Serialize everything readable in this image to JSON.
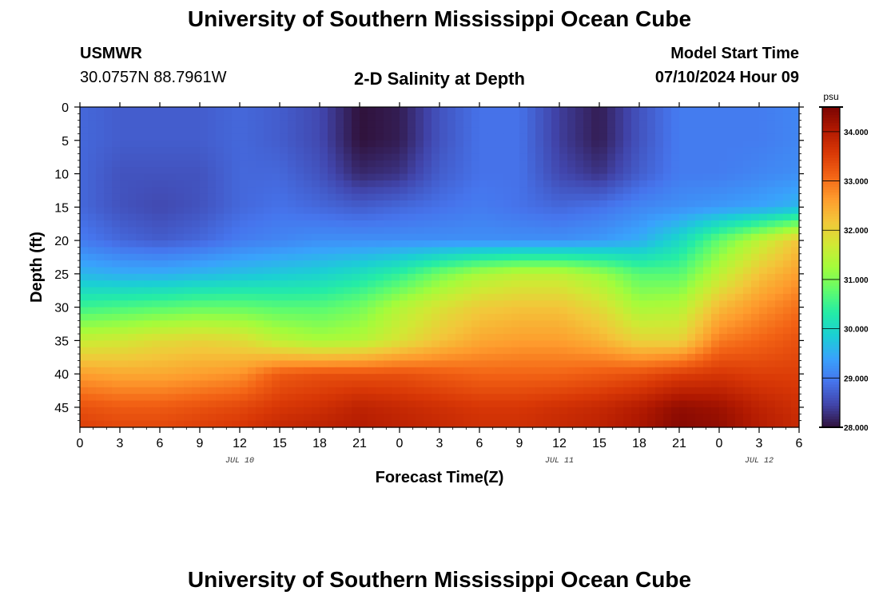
{
  "header": {
    "title": "University of Southern Mississippi Ocean Cube",
    "station": "USMWR",
    "coords": "30.0757N  88.7961W",
    "subtitle": "2-D Salinity at Depth",
    "model_label": "Model Start Time",
    "model_time": "07/10/2024 Hour 09"
  },
  "footer": {
    "title": "University of Southern Mississippi Ocean Cube"
  },
  "chart_data": {
    "type": "heatmap",
    "title": "2-D Salinity at Depth",
    "xlabel": "Forecast Time(Z)",
    "ylabel": "Depth (ft)",
    "x_tick_labels": [
      "0",
      "3",
      "6",
      "9",
      "12",
      "15",
      "18",
      "21",
      "0",
      "3",
      "6",
      "9",
      "12",
      "15",
      "18",
      "21",
      "0",
      "3",
      "6"
    ],
    "x_range_hours": [
      0,
      54
    ],
    "date_labels": [
      {
        "label": "JUL 10",
        "hour": 12
      },
      {
        "label": "JUL 11",
        "hour": 36
      },
      {
        "label": "JUL 12",
        "hour": 51
      }
    ],
    "y_ticks": [
      0,
      5,
      10,
      15,
      20,
      25,
      30,
      35,
      40,
      45
    ],
    "ylim": [
      0,
      48
    ],
    "y_inverted": true,
    "colorbar": {
      "unit": "psu",
      "range": [
        28.0,
        34.5
      ],
      "tick_values": [
        28.0,
        29.0,
        30.0,
        31.0,
        32.0,
        33.0,
        34.0
      ],
      "tick_labels": [
        "28.000",
        "29.000",
        "30.000",
        "31.000",
        "32.000",
        "33.000",
        "34.000"
      ],
      "colormap": [
        "#30123b",
        "#4145ab",
        "#4675ed",
        "#39a2fc",
        "#1bcfd4",
        "#24eca6",
        "#61fc6c",
        "#a4fc3b",
        "#d1e834",
        "#f3c63a",
        "#fe9b2d",
        "#f36315",
        "#d93806",
        "#b11901",
        "#7a0402"
      ]
    },
    "x_samples_hours": [
      0,
      3,
      6,
      9,
      12,
      15,
      18,
      21,
      24,
      27,
      30,
      33,
      36,
      39,
      42,
      45,
      48,
      51,
      54
    ],
    "depth_samples_ft": [
      0,
      5,
      10,
      15,
      20,
      25,
      30,
      35,
      40,
      45,
      48
    ],
    "salinity_grid": [
      [
        28.8,
        28.7,
        28.7,
        28.7,
        28.8,
        28.7,
        28.5,
        28.0,
        28.1,
        28.6,
        28.9,
        28.9,
        28.4,
        28.1,
        28.6,
        29.0,
        29.0,
        29.0,
        29.1
      ],
      [
        28.8,
        28.7,
        28.7,
        28.7,
        28.8,
        28.7,
        28.5,
        28.0,
        28.1,
        28.6,
        28.9,
        28.9,
        28.4,
        28.1,
        28.6,
        29.0,
        29.0,
        29.0,
        29.1
      ],
      [
        28.8,
        28.6,
        28.6,
        28.6,
        28.8,
        28.8,
        28.6,
        28.2,
        28.3,
        28.7,
        28.9,
        28.9,
        28.5,
        28.3,
        28.7,
        29.0,
        29.0,
        29.1,
        29.2
      ],
      [
        28.8,
        28.6,
        28.5,
        28.6,
        28.8,
        28.9,
        28.8,
        28.7,
        28.8,
        28.9,
        29.0,
        28.9,
        28.8,
        28.9,
        29.1,
        29.2,
        29.3,
        29.4,
        29.6
      ],
      [
        29.0,
        28.8,
        28.7,
        28.8,
        29.0,
        29.1,
        29.2,
        29.2,
        29.2,
        29.2,
        29.2,
        29.2,
        29.2,
        29.3,
        29.5,
        30.0,
        30.8,
        31.5,
        32.2
      ],
      [
        29.6,
        29.5,
        29.5,
        29.6,
        29.7,
        29.8,
        29.9,
        30.1,
        30.4,
        30.9,
        31.3,
        31.5,
        31.5,
        31.2,
        30.7,
        30.7,
        31.5,
        32.2,
        32.6
      ],
      [
        30.5,
        30.6,
        30.7,
        30.8,
        30.8,
        30.7,
        30.7,
        30.9,
        31.4,
        31.8,
        32.1,
        32.2,
        32.2,
        31.9,
        31.3,
        31.4,
        32.3,
        32.7,
        33.0
      ],
      [
        31.6,
        31.7,
        31.9,
        32.0,
        31.9,
        31.5,
        31.3,
        31.4,
        31.8,
        32.2,
        32.5,
        32.6,
        32.6,
        32.4,
        32.0,
        32.0,
        32.9,
        33.1,
        33.3
      ],
      [
        32.6,
        32.5,
        32.5,
        32.6,
        32.7,
        33.2,
        33.3,
        33.3,
        33.3,
        33.2,
        33.1,
        33.1,
        33.1,
        33.2,
        33.3,
        33.5,
        33.6,
        33.5,
        33.5
      ],
      [
        33.3,
        33.2,
        33.2,
        33.3,
        33.4,
        33.6,
        33.7,
        33.9,
        33.8,
        33.7,
        33.6,
        33.6,
        33.7,
        33.8,
        34.0,
        34.3,
        34.2,
        33.9,
        33.7
      ],
      [
        33.5,
        33.4,
        33.4,
        33.5,
        33.6,
        33.8,
        33.9,
        34.0,
        33.9,
        33.8,
        33.7,
        33.7,
        33.8,
        33.9,
        34.1,
        34.4,
        34.3,
        34.0,
        33.8
      ]
    ]
  }
}
